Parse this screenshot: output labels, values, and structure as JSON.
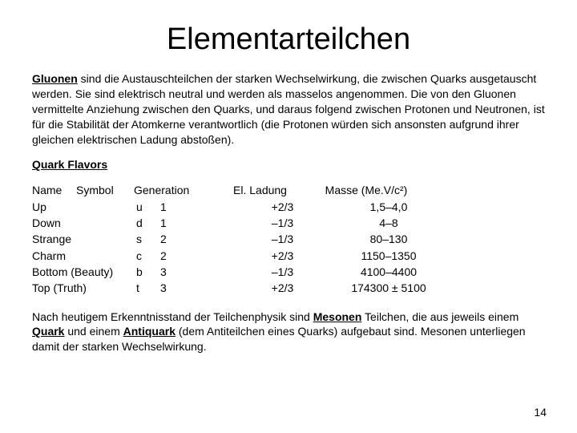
{
  "title": "Elementarteilchen",
  "intro": {
    "term": "Gluonen",
    "text": " sind die Austauschteilchen der starken Wechselwirkung, die zwischen Quarks ausgetauscht werden. Sie sind elektrisch neutral und werden als masselos angenommen. Die von den Gluonen vermittelte Anziehung zwischen den Quarks, und daraus folgend zwischen Protonen und Neutronen, ist für die Stabilität der Atomkerne verantwortlich (die Protonen würden sich ansonsten aufgrund ihrer gleichen elektrischen Ladung abstoßen)."
  },
  "subheading": "Quark Flavors",
  "table": {
    "headers": {
      "name": "Name",
      "symbol": "Symbol",
      "gen": "Generation",
      "charge": "El. Ladung",
      "mass": "Masse (Me.V/c²)"
    },
    "rows": [
      {
        "name": "Up",
        "symbol": "u",
        "gen": "1",
        "charge": "+2/3",
        "mass": "1,5–4,0"
      },
      {
        "name": "Down",
        "symbol": "d",
        "gen": "1",
        "charge": "–1/3",
        "mass": "4–8"
      },
      {
        "name": "Strange",
        "symbol": "s",
        "gen": "2",
        "charge": "–1/3",
        "mass": "80–130"
      },
      {
        "name": "Charm",
        "symbol": "c",
        "gen": "2",
        "charge": "+2/3",
        "mass": "1150–1350"
      },
      {
        "name": "Bottom (Beauty)",
        "symbol": "b",
        "gen": "3",
        "charge": "–1/3",
        "mass": "4100–4400"
      },
      {
        "name": "Top (Truth)",
        "symbol": "t",
        "gen": "3",
        "charge": "+2/3",
        "mass": "174300 ± 5100"
      }
    ]
  },
  "outro": {
    "pre": "Nach heutigem Erkenntnisstand der Teilchenphysik sind ",
    "term1": "Mesonen",
    "mid1": " Teilchen, die aus jeweils einem ",
    "term2": "Quark",
    "mid2": " und einem ",
    "term3": "Antiquark",
    "post": " (dem Antiteilchen eines Quarks) aufgebaut sind. Mesonen unterliegen damit der starken Wechselwirkung."
  },
  "page_number": "14",
  "colors": {
    "bg": "#ffffff",
    "text": "#000000"
  }
}
